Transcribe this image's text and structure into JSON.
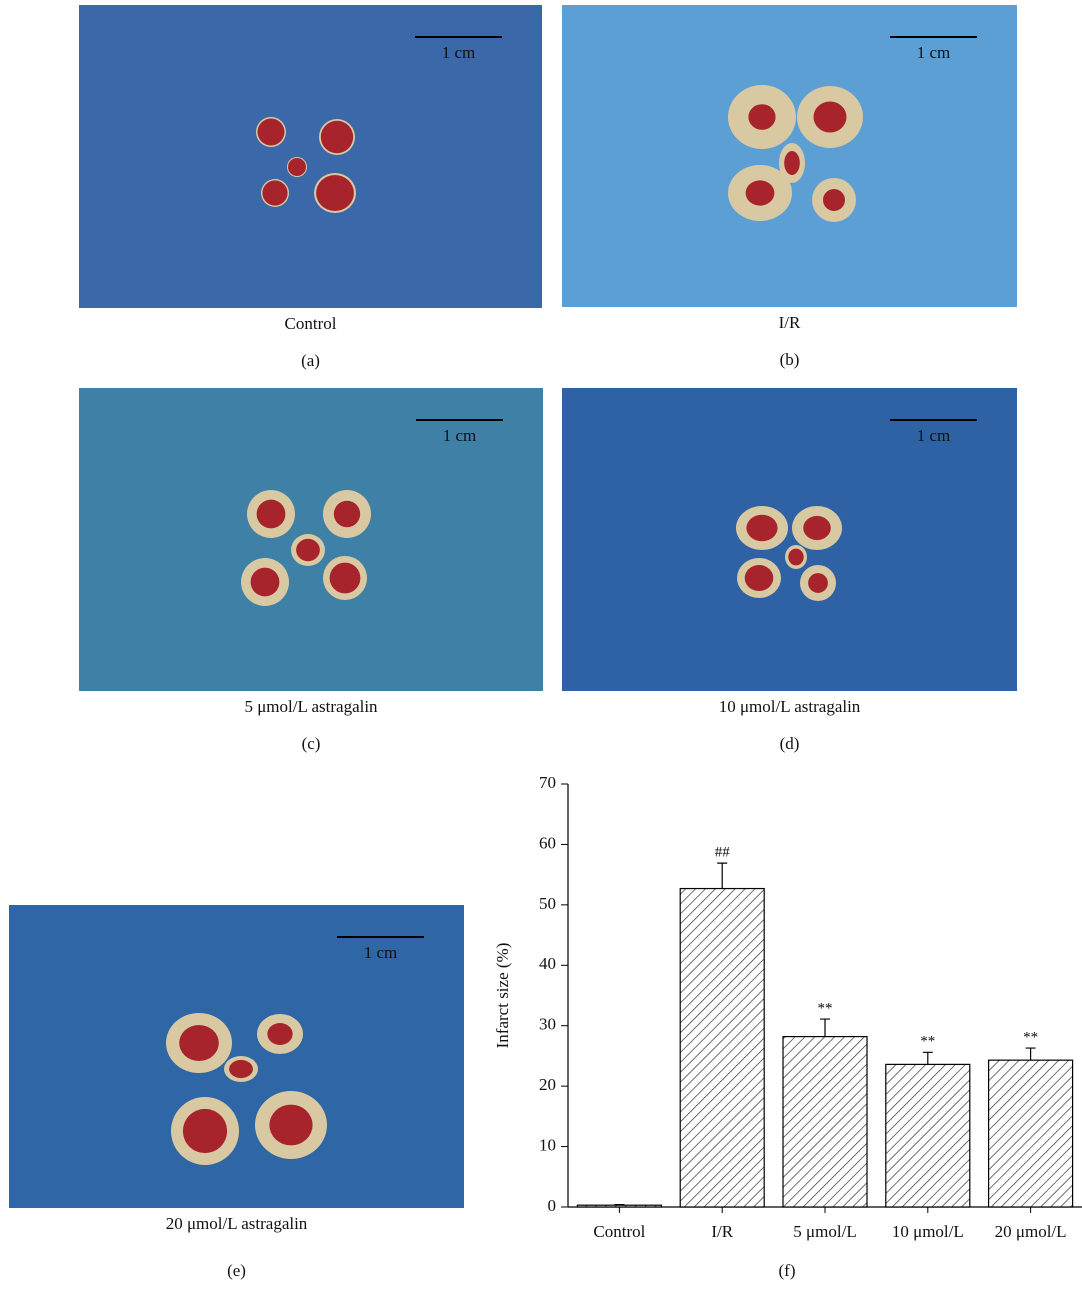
{
  "panels": [
    {
      "caption": "Control",
      "label": "(a)",
      "scale": "1 cm"
    },
    {
      "caption": "I/R",
      "label": "(b)",
      "scale": "1 cm"
    },
    {
      "caption": "5 μmol/L astragalin",
      "label": "(c)",
      "scale": "1 cm"
    },
    {
      "caption": "10 μmol/L astragalin",
      "label": "(d)",
      "scale": "1 cm"
    },
    {
      "caption": "20 μmol/L astragalin",
      "label": "(e)",
      "scale": "1 cm"
    }
  ],
  "chart_data": {
    "type": "bar",
    "label": "(f)",
    "y_label": "Infarct size (%)",
    "categories": [
      "Control",
      "I/R",
      "5 μmol/L",
      "10 μmol/L",
      "20 μmol/L"
    ],
    "values": [
      0.3,
      52.7,
      28.2,
      23.6,
      24.3
    ],
    "errors": [
      0.1,
      4.2,
      2.9,
      2.0,
      2.0
    ],
    "annotations": [
      null,
      "##",
      "**",
      "**",
      "**"
    ],
    "ylim": [
      0,
      70
    ],
    "yticks": [
      0,
      10,
      20,
      30,
      40,
      50,
      60,
      70
    ],
    "color": "#ffffff"
  }
}
